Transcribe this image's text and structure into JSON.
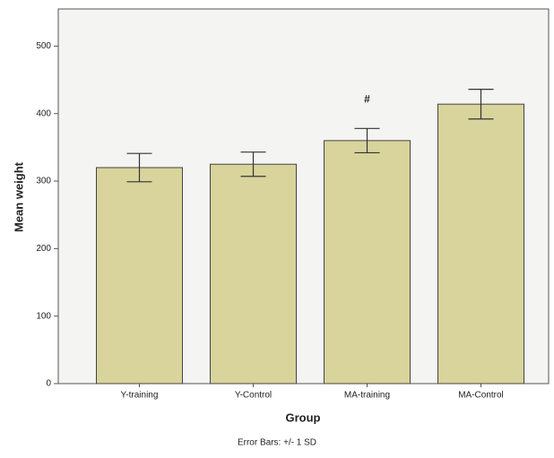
{
  "chart_data": {
    "type": "bar",
    "x_label": "Group",
    "y_label": "Mean weight",
    "categories": [
      "Y-training",
      "Y-Control",
      "MA-training",
      "MA-Control"
    ],
    "values": [
      320,
      325,
      360,
      414
    ],
    "errors": [
      21,
      18,
      18,
      22
    ],
    "color": "#d8d49c",
    "ylim": [
      0,
      555
    ],
    "yticks": [
      0,
      100,
      200,
      300,
      400,
      500
    ],
    "annotation": "#",
    "footnote": "Error Bars: +/- 1 SD"
  }
}
